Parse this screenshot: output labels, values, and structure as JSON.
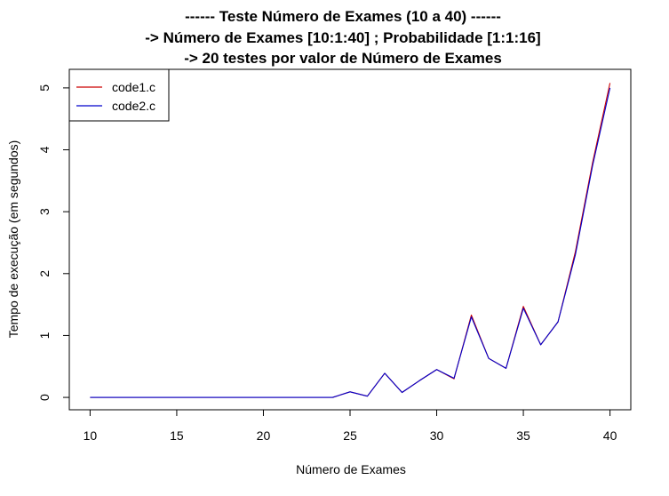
{
  "chart_data": {
    "type": "line",
    "title_lines": [
      "------ Teste Número de Exames (10 a 40) ------",
      "-> Número de Exames [10:1:40] ; Probabilidade [1:1:16]",
      "-> 20 testes por valor de Número de Exames"
    ],
    "xlabel": "Número de Exames",
    "ylabel": "Tempo de execução (em segundos)",
    "xlim": [
      8.8,
      41.2
    ],
    "ylim": [
      -0.2,
      5.3
    ],
    "x_ticks": [
      10,
      15,
      20,
      25,
      30,
      35,
      40
    ],
    "y_ticks": [
      0,
      1,
      2,
      3,
      4,
      5
    ],
    "grid": false,
    "legend_position": "top-left",
    "x": [
      10,
      11,
      12,
      13,
      14,
      15,
      16,
      17,
      18,
      19,
      20,
      21,
      22,
      23,
      24,
      25,
      26,
      27,
      28,
      29,
      30,
      31,
      32,
      33,
      34,
      35,
      36,
      37,
      38,
      39,
      40
    ],
    "series": [
      {
        "name": "code1.c",
        "color": "#cc0000",
        "values": [
          0,
          0,
          0,
          0,
          0,
          0,
          0,
          0,
          0,
          0,
          0,
          0,
          0,
          0,
          0,
          0.09,
          0.02,
          0.39,
          0.08,
          0.27,
          0.45,
          0.3,
          1.33,
          0.63,
          0.47,
          1.47,
          0.85,
          1.22,
          2.35,
          3.8,
          5.08
        ]
      },
      {
        "name": "code2.c",
        "color": "#0000cc",
        "values": [
          0,
          0,
          0,
          0,
          0,
          0,
          0,
          0,
          0,
          0,
          0,
          0,
          0,
          0,
          0,
          0.09,
          0.02,
          0.39,
          0.08,
          0.27,
          0.45,
          0.31,
          1.3,
          0.63,
          0.47,
          1.44,
          0.85,
          1.22,
          2.3,
          3.75,
          5.0
        ]
      }
    ]
  }
}
